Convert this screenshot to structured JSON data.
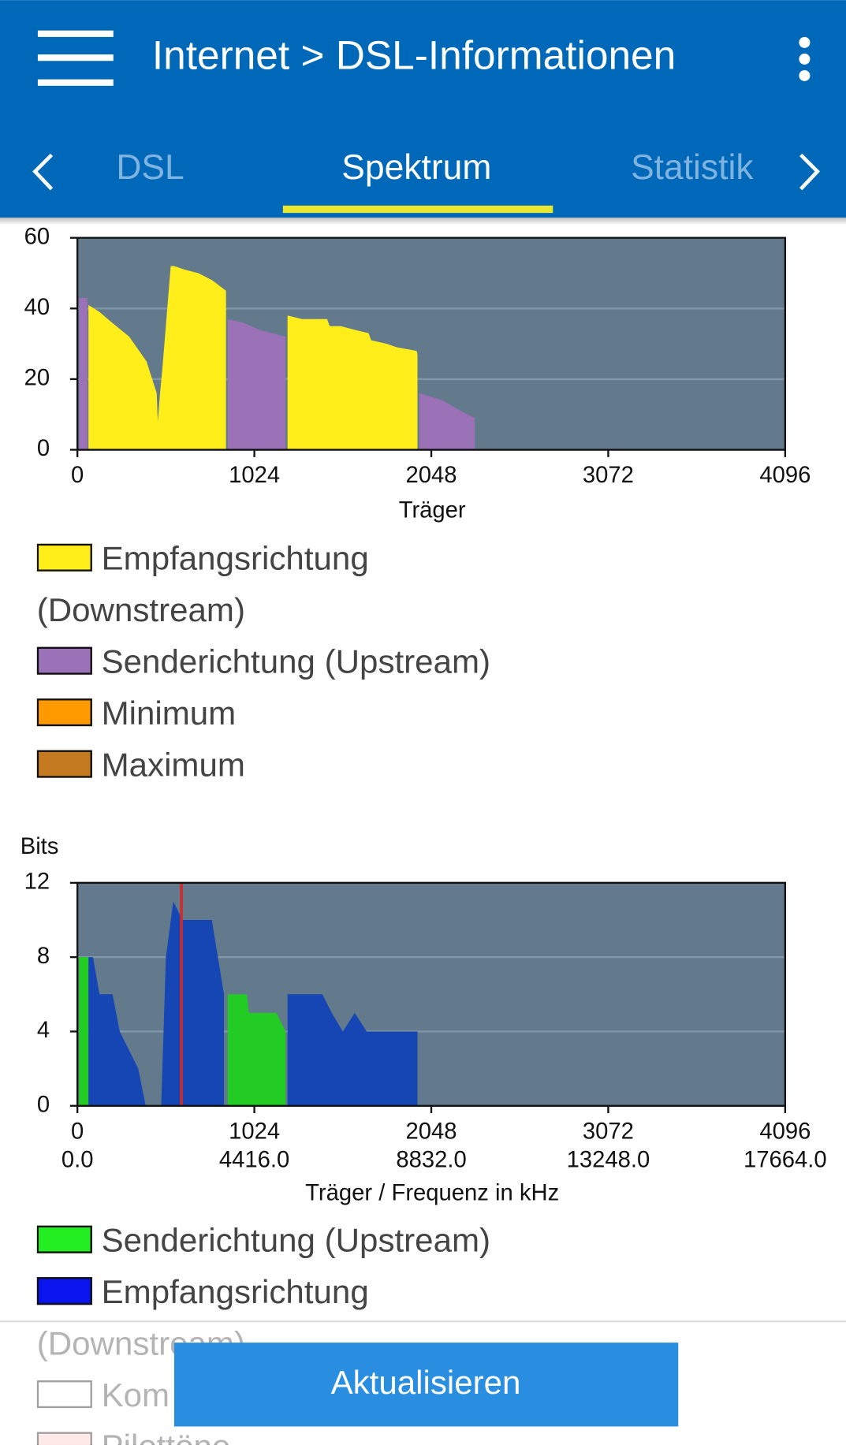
{
  "header": {
    "title": "Internet > DSL-Informationen"
  },
  "tabs": [
    "DSL",
    "Spektrum",
    "Statistik"
  ],
  "button": "Aktualisieren",
  "chart_data": [
    {
      "type": "area",
      "xlabel": "Träger",
      "xlim": [
        0,
        4096
      ],
      "xticks": [
        0,
        1024,
        2048,
        3072,
        4096
      ],
      "ylim": [
        0,
        60
      ],
      "yticks": [
        0,
        20,
        40,
        60
      ],
      "grid": true,
      "series": [
        {
          "name": "Empfangsrichtung (Downstream)",
          "color": "#ffee1a",
          "x": [
            64,
            128,
            200,
            300,
            400,
            459,
            465,
            480,
            490,
            540,
            560,
            620,
            700,
            780,
            860,
            null,
            1216,
            1300,
            1445,
            1460,
            1525,
            1600,
            1685,
            1700,
            1790,
            1850,
            1963,
            1968
          ],
          "values": [
            41,
            39,
            36,
            32,
            25,
            16,
            8,
            17,
            22,
            52,
            52,
            51,
            50,
            48,
            45,
            null,
            38,
            37,
            37,
            35,
            35,
            34,
            33,
            31,
            30,
            29,
            28,
            27
          ]
        },
        {
          "name": "Senderichtung (Upstream)",
          "color": "#9b72b8",
          "x": [
            10,
            58,
            null,
            870,
            960,
            1050,
            1205,
            null,
            1979,
            2050,
            2112,
            2219,
            2299
          ],
          "values": [
            43,
            43,
            null,
            37,
            36,
            34,
            32,
            null,
            16,
            15,
            14,
            11,
            9
          ]
        },
        {
          "name": "Minimum",
          "color": "#ff9900"
        },
        {
          "name": "Maximum",
          "color": "#c47a20"
        }
      ]
    },
    {
      "type": "area",
      "ylabel": "Bits",
      "xlabel": "Träger / Frequenz in kHz",
      "xlim": [
        0,
        4096
      ],
      "xticks": [
        0,
        1024,
        2048,
        3072,
        4096
      ],
      "xticks2": [
        {
          "value": 0,
          "label": "0.0"
        },
        {
          "value": 1024,
          "label": "4416.0"
        },
        {
          "value": 2048,
          "label": "8832.0"
        },
        {
          "value": 3072,
          "label": "13248.0"
        },
        {
          "value": 4096,
          "label": "17664.0"
        }
      ],
      "ylim": [
        0,
        12
      ],
      "yticks": [
        0,
        4,
        8,
        12
      ],
      "grid": true,
      "series": [
        {
          "name": "Senderichtung (Upstream)",
          "color": "#22cc22",
          "legend_color": "#22ee22",
          "x": [
            10,
            64,
            null,
            870,
            981,
            992,
            1152,
            1205
          ],
          "values": [
            8,
            8,
            null,
            6,
            6,
            5,
            5,
            4
          ]
        },
        {
          "name": "Empfangsrichtung (Downstream)",
          "color": "#1646b4",
          "legend_color": "#0a14ee",
          "x": [
            64,
            90,
            128,
            203,
            245,
            352,
            395,
            null,
            485,
            512,
            555,
            608,
            778,
            848,
            null,
            1216,
            1418,
            1472,
            1536,
            1605,
            1674,
            1738,
            1952,
            1968
          ],
          "values": [
            8,
            8,
            6,
            6,
            4,
            2,
            0,
            null,
            0,
            8,
            11,
            10,
            10,
            6,
            null,
            6,
            6,
            5,
            4,
            5,
            4,
            4,
            4,
            4
          ]
        },
        {
          "name": "Kom",
          "color": "#ffffff"
        },
        {
          "name": "Pilottöne",
          "color": "#ffc8c8"
        }
      ],
      "markers": [
        {
          "x": 602,
          "color": "#d22a2a"
        }
      ]
    }
  ]
}
